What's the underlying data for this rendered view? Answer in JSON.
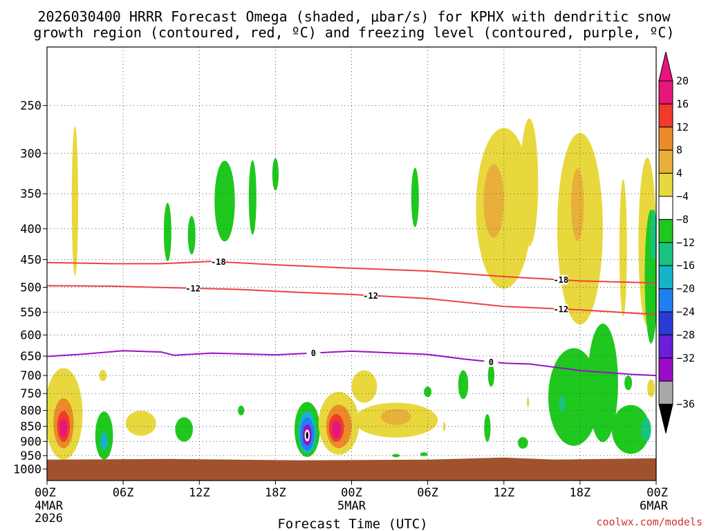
{
  "chart_data": {
    "type": "time-height",
    "title_line1": "2026030400 HRRR Forecast Omega (shaded, μbar/s) for KPHX with dendritic snow",
    "title_line2": "growth region (contoured, red, ºC) and freezing level (contoured, purple, ºC)",
    "xlabel": "Forecast Time (UTC)",
    "credit": "coolwx.com/models",
    "x_range_hours": [
      0,
      48
    ],
    "x_ticks": [
      {
        "hour": 0,
        "label": "00Z",
        "date1": "4MAR",
        "date2": "2026"
      },
      {
        "hour": 6,
        "label": "06Z"
      },
      {
        "hour": 12,
        "label": "12Z"
      },
      {
        "hour": 18,
        "label": "18Z"
      },
      {
        "hour": 24,
        "label": "00Z",
        "date1": "5MAR"
      },
      {
        "hour": 30,
        "label": "06Z"
      },
      {
        "hour": 36,
        "label": "12Z"
      },
      {
        "hour": 42,
        "label": "18Z"
      },
      {
        "hour": 48,
        "label": "00Z",
        "date1": "6MAR"
      }
    ],
    "y_ticks": [
      {
        "p": 250,
        "label": "250"
      },
      {
        "p": 300,
        "label": "300"
      },
      {
        "p": 350,
        "label": "350"
      },
      {
        "p": 400,
        "label": "400"
      },
      {
        "p": 450,
        "label": "450"
      },
      {
        "p": 500,
        "label": "500"
      },
      {
        "p": 550,
        "label": "550"
      },
      {
        "p": 600,
        "label": "600"
      },
      {
        "p": 650,
        "label": "650"
      },
      {
        "p": 700,
        "label": "700"
      },
      {
        "p": 750,
        "label": "750"
      },
      {
        "p": 800,
        "label": "800"
      },
      {
        "p": 850,
        "label": "850"
      },
      {
        "p": 900,
        "label": "900"
      },
      {
        "p": 950,
        "label": "950"
      },
      {
        "p": 1000,
        "label": "1000"
      }
    ],
    "surface_pressure": 965,
    "colorbar": {
      "levels": [
        {
          "label": "20",
          "color": "#e8157d"
        },
        {
          "label": "16",
          "color": "#f03a2a"
        },
        {
          "label": "12",
          "color": "#ec8a2a"
        },
        {
          "label": "8",
          "color": "#e8b03a"
        },
        {
          "label": "4",
          "color": "#e8d83e"
        },
        {
          "label": "−4",
          "color": "#ffffff"
        },
        {
          "label": "−8",
          "color": "#1ec81e"
        },
        {
          "label": "−12",
          "color": "#18c37e"
        },
        {
          "label": "−16",
          "color": "#16b4c8"
        },
        {
          "label": "−20",
          "color": "#1e7ff0"
        },
        {
          "label": "−24",
          "color": "#2a3cd8"
        },
        {
          "label": "−28",
          "color": "#6a1ed8"
        },
        {
          "label": "−32",
          "color": "#9a0dc8"
        },
        {
          "label": "−36",
          "color": "#a8a8a8"
        }
      ],
      "max_color": "#e8157d",
      "min_color": "#000000"
    },
    "contours": [
      {
        "name": "isotherm-minus18",
        "value": -18,
        "label": "-18",
        "color": "#f04040",
        "points": [
          [
            0,
            455
          ],
          [
            5,
            457
          ],
          [
            9,
            457
          ],
          [
            13,
            453
          ],
          [
            18,
            459
          ],
          [
            24,
            465
          ],
          [
            30,
            470
          ],
          [
            36,
            480
          ],
          [
            42,
            488
          ],
          [
            48,
            492
          ]
        ],
        "label_hours": [
          13.5,
          40.5
        ]
      },
      {
        "name": "isotherm-minus12",
        "value": -12,
        "label": "-12",
        "color": "#f04040",
        "points": [
          [
            0,
            497
          ],
          [
            5,
            498
          ],
          [
            10,
            501
          ],
          [
            15,
            504
          ],
          [
            20,
            510
          ],
          [
            24,
            514
          ],
          [
            30,
            522
          ],
          [
            36,
            538
          ],
          [
            42,
            545
          ],
          [
            48,
            555
          ]
        ],
        "label_hours": [
          11.5,
          25.5,
          40.5
        ]
      },
      {
        "name": "freezing-level",
        "value": 0,
        "label": "0",
        "color": "#9a10c8",
        "points": [
          [
            0,
            651
          ],
          [
            3,
            645
          ],
          [
            6,
            637
          ],
          [
            9,
            640
          ],
          [
            10,
            648
          ],
          [
            13,
            643
          ],
          [
            18,
            647
          ],
          [
            24,
            638
          ],
          [
            30,
            646
          ],
          [
            33,
            658
          ],
          [
            36,
            668
          ],
          [
            38,
            670
          ],
          [
            42,
            687
          ],
          [
            46,
            697
          ],
          [
            48,
            700
          ]
        ],
        "label_hours": [
          21,
          35
        ]
      }
    ],
    "omega_regions": [
      {
        "color": "#e8d83e",
        "t": 2.2,
        "p": 360,
        "rt": 0.25,
        "rp": 100
      },
      {
        "color": "#1ec81e",
        "t": 9.5,
        "p": 405,
        "rt": 0.3,
        "rp": 45
      },
      {
        "color": "#1ec81e",
        "t": 11.4,
        "p": 410,
        "rt": 0.3,
        "rp": 30
      },
      {
        "color": "#1ec81e",
        "t": 14.0,
        "p": 360,
        "rt": 0.8,
        "rp": 55
      },
      {
        "color": "#1ec81e",
        "t": 16.2,
        "p": 355,
        "rt": 0.3,
        "rp": 50
      },
      {
        "color": "#1ec81e",
        "t": 18.0,
        "p": 325,
        "rt": 0.25,
        "rp": 20
      },
      {
        "color": "#1ec81e",
        "t": 29.0,
        "p": 355,
        "rt": 0.3,
        "rp": 40
      },
      {
        "color": "#e8d83e",
        "t": 36.0,
        "p": 370,
        "rt": 2.2,
        "rp": 110
      },
      {
        "color": "#e8b03a",
        "t": 35.2,
        "p": 360,
        "rt": 0.8,
        "rp": 50
      },
      {
        "color": "#e8d83e",
        "t": 38.0,
        "p": 335,
        "rt": 0.7,
        "rp": 80
      },
      {
        "color": "#e8d83e",
        "t": 42.0,
        "p": 400,
        "rt": 1.8,
        "rp": 140
      },
      {
        "color": "#e8b03a",
        "t": 41.8,
        "p": 365,
        "rt": 0.5,
        "rp": 50
      },
      {
        "color": "#e8d83e",
        "t": 45.4,
        "p": 430,
        "rt": 0.3,
        "rp": 110
      },
      {
        "color": "#e8d83e",
        "t": 47.3,
        "p": 420,
        "rt": 0.7,
        "rp": 130
      },
      {
        "color": "#1ec81e",
        "t": 47.6,
        "p": 480,
        "rt": 0.5,
        "rp": 120
      },
      {
        "color": "#18c37e",
        "t": 47.8,
        "p": 410,
        "rt": 0.25,
        "rp": 40
      },
      {
        "color": "#e8d83e",
        "t": 1.3,
        "p": 810,
        "rt": 1.5,
        "rp": 140
      },
      {
        "color": "#ec8a2a",
        "t": 1.3,
        "p": 840,
        "rt": 0.8,
        "rp": 80
      },
      {
        "color": "#f03a2a",
        "t": 1.3,
        "p": 850,
        "rt": 0.5,
        "rp": 50
      },
      {
        "color": "#e8157d",
        "t": 1.3,
        "p": 855,
        "rt": 0.3,
        "rp": 30
      },
      {
        "color": "#e8d83e",
        "t": 4.4,
        "p": 700,
        "rt": 0.3,
        "rp": 15
      },
      {
        "color": "#1ec81e",
        "t": 4.5,
        "p": 880,
        "rt": 0.7,
        "rp": 80
      },
      {
        "color": "#16b4c8",
        "t": 4.5,
        "p": 900,
        "rt": 0.3,
        "rp": 30
      },
      {
        "color": "#e8d83e",
        "t": 7.4,
        "p": 840,
        "rt": 1.2,
        "rp": 40
      },
      {
        "color": "#1ec81e",
        "t": 10.8,
        "p": 860,
        "rt": 0.7,
        "rp": 40
      },
      {
        "color": "#1ec81e",
        "t": 15.3,
        "p": 800,
        "rt": 0.25,
        "rp": 15
      },
      {
        "color": "#1ec81e",
        "t": 20.5,
        "p": 860,
        "rt": 1.0,
        "rp": 90
      },
      {
        "color": "#16b4c8",
        "t": 20.5,
        "p": 870,
        "rt": 0.7,
        "rp": 70
      },
      {
        "color": "#1e7ff0",
        "t": 20.5,
        "p": 875,
        "rt": 0.55,
        "rp": 55
      },
      {
        "color": "#9a0dc8",
        "t": 20.5,
        "p": 878,
        "rt": 0.35,
        "rp": 35
      },
      {
        "color": "#ffffff",
        "t": 20.5,
        "p": 880,
        "rt": 0.2,
        "rp": 20
      },
      {
        "color": "#000000",
        "t": 20.5,
        "p": 880,
        "rt": 0.1,
        "rp": 12
      },
      {
        "color": "#e8d83e",
        "t": 25.0,
        "p": 730,
        "rt": 1.0,
        "rp": 45
      },
      {
        "color": "#e8d83e",
        "t": 27.5,
        "p": 830,
        "rt": 3.3,
        "rp": 55
      },
      {
        "color": "#e8d83e",
        "t": 23.0,
        "p": 840,
        "rt": 1.6,
        "rp": 100
      },
      {
        "color": "#ec8a2a",
        "t": 23.0,
        "p": 850,
        "rt": 1.0,
        "rp": 70
      },
      {
        "color": "#f03a2a",
        "t": 22.8,
        "p": 855,
        "rt": 0.6,
        "rp": 45
      },
      {
        "color": "#e8157d",
        "t": 22.8,
        "p": 860,
        "rt": 0.35,
        "rp": 30
      },
      {
        "color": "#e8b03a",
        "t": 27.5,
        "p": 820,
        "rt": 1.2,
        "rp": 25
      },
      {
        "color": "#1ec81e",
        "t": 32.8,
        "p": 725,
        "rt": 0.4,
        "rp": 40
      },
      {
        "color": "#1ec81e",
        "t": 30.0,
        "p": 745,
        "rt": 0.3,
        "rp": 15
      },
      {
        "color": "#1ec81e",
        "t": 35.0,
        "p": 700,
        "rt": 0.25,
        "rp": 30
      },
      {
        "color": "#1ec81e",
        "t": 34.7,
        "p": 855,
        "rt": 0.25,
        "rp": 45
      },
      {
        "color": "#1ec81e",
        "t": 37.5,
        "p": 905,
        "rt": 0.4,
        "rp": 20
      },
      {
        "color": "#1ec81e",
        "t": 41.5,
        "p": 760,
        "rt": 2.0,
        "rp": 140
      },
      {
        "color": "#1ec81e",
        "t": 43.8,
        "p": 720,
        "rt": 1.2,
        "rp": 160
      },
      {
        "color": "#18c37e",
        "t": 40.6,
        "p": 780,
        "rt": 0.25,
        "rp": 25
      },
      {
        "color": "#1ec81e",
        "t": 46.0,
        "p": 860,
        "rt": 1.5,
        "rp": 80
      },
      {
        "color": "#18c37e",
        "t": 47.2,
        "p": 860,
        "rt": 0.4,
        "rp": 40
      },
      {
        "color": "#1ec81e",
        "t": 45.8,
        "p": 720,
        "rt": 0.3,
        "rp": 20
      },
      {
        "color": "#e8d83e",
        "t": 47.6,
        "p": 735,
        "rt": 0.3,
        "rp": 25
      },
      {
        "color": "#e8d83e",
        "t": 37.9,
        "p": 775,
        "rt": 0.1,
        "rp": 15
      },
      {
        "color": "#e8d83e",
        "t": 31.3,
        "p": 850,
        "rt": 0.1,
        "rp": 15
      },
      {
        "color": "#1ec81e",
        "t": 29.7,
        "p": 945,
        "rt": 0.3,
        "rp": 7
      },
      {
        "color": "#1ec81e",
        "t": 27.5,
        "p": 950,
        "rt": 0.3,
        "rp": 6
      }
    ]
  }
}
